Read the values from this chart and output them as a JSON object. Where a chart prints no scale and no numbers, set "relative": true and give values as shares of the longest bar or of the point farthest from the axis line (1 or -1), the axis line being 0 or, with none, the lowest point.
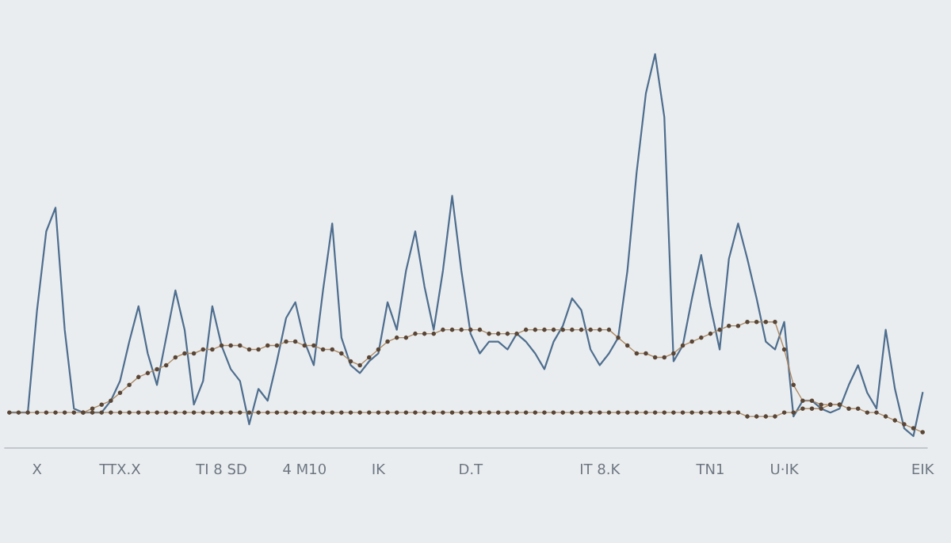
{
  "chart_data": {
    "type": "line",
    "relative": true,
    "categories": [
      null,
      null,
      null,
      "X",
      null,
      null,
      null,
      null,
      null,
      null,
      null,
      null,
      "TTX.X",
      null,
      null,
      null,
      null,
      null,
      null,
      null,
      null,
      null,
      null,
      "TI 8 SD",
      null,
      null,
      null,
      null,
      null,
      null,
      null,
      null,
      "4 M10",
      null,
      null,
      null,
      null,
      null,
      null,
      null,
      "IK",
      null,
      null,
      null,
      null,
      null,
      null,
      null,
      null,
      null,
      "D.T",
      null,
      null,
      null,
      null,
      null,
      null,
      null,
      null,
      null,
      null,
      null,
      null,
      null,
      "IT 8.K",
      null,
      null,
      null,
      null,
      null,
      null,
      null,
      null,
      null,
      null,
      null,
      "TN1",
      null,
      null,
      null,
      null,
      null,
      null,
      null,
      "U·IK",
      null,
      null,
      null,
      null,
      null,
      null,
      null,
      null,
      null,
      null,
      null,
      null,
      null,
      null,
      "EIK"
    ],
    "series": [
      {
        "color": "#4f6e8e",
        "marker": "none",
        "values": [
          0.09,
          0.09,
          0.09,
          0.35,
          0.55,
          0.61,
          0.3,
          0.1,
          0.09,
          0.09,
          0.09,
          0.12,
          0.17,
          0.27,
          0.36,
          0.24,
          0.16,
          0.28,
          0.4,
          0.3,
          0.11,
          0.17,
          0.36,
          0.26,
          0.2,
          0.17,
          0.06,
          0.15,
          0.12,
          0.22,
          0.33,
          0.37,
          0.27,
          0.21,
          0.4,
          0.57,
          0.28,
          0.21,
          0.19,
          0.22,
          0.24,
          0.37,
          0.3,
          0.45,
          0.55,
          0.41,
          0.3,
          0.45,
          0.64,
          0.45,
          0.29,
          0.24,
          0.27,
          0.27,
          0.25,
          0.29,
          0.27,
          0.24,
          0.2,
          0.27,
          0.31,
          0.38,
          0.35,
          0.25,
          0.21,
          0.24,
          0.28,
          0.45,
          0.7,
          0.9,
          1.0,
          0.84,
          0.22,
          0.26,
          0.38,
          0.49,
          0.36,
          0.25,
          0.48,
          0.57,
          0.48,
          0.38,
          0.27,
          0.25,
          0.32,
          0.08,
          0.12,
          0.12,
          0.1,
          0.09,
          0.1,
          0.16,
          0.21,
          0.14,
          0.1,
          0.3,
          0.15,
          0.05,
          0.03,
          0.14
        ]
      },
      {
        "color": "#b08a64",
        "marker": "circle",
        "values": [
          null,
          null,
          null,
          null,
          null,
          null,
          null,
          null,
          0.09,
          0.1,
          0.11,
          0.12,
          0.14,
          0.16,
          0.18,
          0.19,
          0.2,
          0.21,
          0.23,
          0.24,
          0.24,
          0.25,
          0.25,
          0.26,
          0.26,
          0.26,
          0.25,
          0.25,
          0.26,
          0.26,
          0.27,
          0.27,
          0.26,
          0.26,
          0.25,
          0.25,
          0.24,
          0.22,
          0.21,
          0.23,
          0.25,
          0.27,
          0.28,
          0.28,
          0.29,
          0.29,
          0.29,
          0.3,
          0.3,
          0.3,
          0.3,
          0.3,
          0.29,
          0.29,
          0.29,
          0.29,
          0.3,
          0.3,
          0.3,
          0.3,
          0.3,
          0.3,
          0.3,
          0.3,
          0.3,
          0.3,
          0.28,
          0.26,
          0.24,
          0.24,
          0.23,
          0.23,
          0.24,
          0.26,
          0.27,
          0.28,
          0.29,
          0.3,
          0.31,
          0.31,
          0.32,
          0.32,
          0.32,
          0.32,
          0.25,
          0.16,
          0.12,
          0.12,
          0.11,
          0.11,
          0.11,
          0.1,
          0.1,
          0.09,
          0.09,
          0.08,
          0.07,
          0.06,
          0.05,
          0.04
        ]
      },
      {
        "color": "#b08a64",
        "marker": "circle",
        "values": [
          0.09,
          0.09,
          0.09,
          0.09,
          0.09,
          0.09,
          0.09,
          0.09,
          0.09,
          0.09,
          0.09,
          0.09,
          0.09,
          0.09,
          0.09,
          0.09,
          0.09,
          0.09,
          0.09,
          0.09,
          0.09,
          0.09,
          0.09,
          0.09,
          0.09,
          0.09,
          0.09,
          0.09,
          0.09,
          0.09,
          0.09,
          0.09,
          0.09,
          0.09,
          0.09,
          0.09,
          0.09,
          0.09,
          0.09,
          0.09,
          0.09,
          0.09,
          0.09,
          0.09,
          0.09,
          0.09,
          0.09,
          0.09,
          0.09,
          0.09,
          0.09,
          0.09,
          0.09,
          0.09,
          0.09,
          0.09,
          0.09,
          0.09,
          0.09,
          0.09,
          0.09,
          0.09,
          0.09,
          0.09,
          0.09,
          0.09,
          0.09,
          0.09,
          0.09,
          0.09,
          0.09,
          0.09,
          0.09,
          0.09,
          0.09,
          0.09,
          0.09,
          0.09,
          0.09,
          0.09,
          0.08,
          0.08,
          0.08,
          0.08,
          0.09,
          0.09,
          0.1,
          0.1,
          0.1,
          0.11,
          0.11,
          null,
          null,
          null,
          null,
          null,
          null,
          null,
          null,
          null
        ]
      }
    ]
  }
}
